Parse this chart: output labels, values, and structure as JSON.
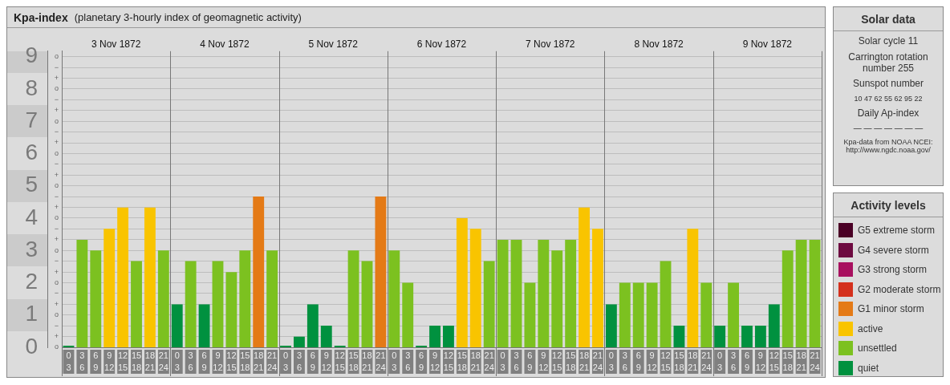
{
  "chart_data": [
    {
      "type": "bar",
      "title": "Kpa-index",
      "subtitle": "(planetary 3-hourly index of geomagnetic activity)",
      "legend_title": "Activity levels",
      "legend": "right",
      "stacked": true,
      "grid": "y",
      "categories": [
        "0\n3",
        "3\n6",
        "6\n9",
        "9\n12",
        "12\n15",
        "15\n18",
        "18\n21",
        "21\n24",
        "0\n3",
        "3\n6",
        "6\n9",
        "9\n12",
        "12\n15",
        "15\n18",
        "18\n21",
        "21\n24",
        "0\n3",
        "3\n6",
        "6\n9",
        "9\n12",
        "12\n15",
        "15\n18",
        "18\n21",
        "21\n24",
        "0\n3",
        "3\n6",
        "6\n9",
        "9\n12",
        "12\n15",
        "15\n18",
        "18\n21",
        "21\n24",
        "0\n3",
        "3\n6",
        "6\n9",
        "9\n12",
        "12\n15",
        "15\n18",
        "18\n21",
        "21\n24",
        "0\n3",
        "3\n6",
        "6\n9",
        "9\n12",
        "12\n15",
        "15\n18",
        "18\n21",
        "21\n24",
        "0\n3",
        "3\n6",
        "6\n9",
        "9\n12",
        "12\n15",
        "15\n18",
        "18\n21",
        "21\n24"
      ],
      "annotations": [
        "3 Nov 1872",
        "4 Nov 1872",
        "5 Nov 1872",
        "6 Nov 1872",
        "7 Nov 1872",
        "8 Nov 1872",
        "9 Nov 1872"
      ],
      "ylim": [
        0,
        9.17
      ],
      "yticks": [
        0,
        1,
        2,
        3,
        4,
        5,
        6,
        7,
        8,
        9
      ],
      "y2_categories": [
        "o",
        "−",
        "+",
        "o",
        "−",
        "+",
        "o",
        "−",
        "+",
        "o",
        "−",
        "+",
        "o",
        "−",
        "+",
        "o",
        "−",
        "+",
        "o",
        "−",
        "+",
        "o",
        "−",
        "+",
        "o",
        "−",
        "+",
        "o"
      ],
      "series": [
        {
          "name": "G5 extreme storm",
          "color": "#4a0025",
          "values": [
            null,
            null,
            null,
            null,
            null,
            null,
            null,
            null,
            null,
            null,
            null,
            null,
            null,
            null,
            null,
            null,
            null,
            null,
            null,
            null,
            null,
            null,
            null,
            null,
            null,
            null,
            null,
            null,
            null,
            null,
            null,
            null,
            null,
            null,
            null,
            null,
            null,
            null,
            null,
            null,
            null,
            null,
            null,
            null,
            null,
            null,
            null,
            null,
            null,
            null,
            null,
            null,
            null,
            null,
            null,
            null
          ]
        },
        {
          "name": "G4 severe storm",
          "color": "#6d0a40",
          "values": [
            null,
            null,
            null,
            null,
            null,
            null,
            null,
            null,
            null,
            null,
            null,
            null,
            null,
            null,
            null,
            null,
            null,
            null,
            null,
            null,
            null,
            null,
            null,
            null,
            null,
            null,
            null,
            null,
            null,
            null,
            null,
            null,
            null,
            null,
            null,
            null,
            null,
            null,
            null,
            null,
            null,
            null,
            null,
            null,
            null,
            null,
            null,
            null,
            null,
            null,
            null,
            null,
            null,
            null,
            null,
            null
          ]
        },
        {
          "name": "G3 strong storm",
          "color": "#a8105f",
          "values": [
            null,
            null,
            null,
            null,
            null,
            null,
            null,
            null,
            null,
            null,
            null,
            null,
            null,
            null,
            null,
            null,
            null,
            null,
            null,
            null,
            null,
            null,
            null,
            null,
            null,
            null,
            null,
            null,
            null,
            null,
            null,
            null,
            null,
            null,
            null,
            null,
            null,
            null,
            null,
            null,
            null,
            null,
            null,
            null,
            null,
            null,
            null,
            null,
            null,
            null,
            null,
            null,
            null,
            null,
            null,
            null
          ]
        },
        {
          "name": "G2 moderate storm",
          "color": "#d4301c",
          "values": [
            null,
            null,
            null,
            null,
            null,
            null,
            null,
            null,
            null,
            null,
            null,
            null,
            null,
            null,
            null,
            null,
            null,
            null,
            null,
            null,
            null,
            null,
            null,
            null,
            null,
            null,
            null,
            null,
            null,
            null,
            null,
            null,
            null,
            null,
            null,
            null,
            null,
            null,
            null,
            null,
            null,
            null,
            null,
            null,
            null,
            null,
            null,
            null,
            null,
            null,
            null,
            null,
            null,
            null,
            null,
            null
          ]
        },
        {
          "name": "G1 minor storm",
          "color": "#e47a16",
          "values": [
            null,
            null,
            null,
            null,
            null,
            null,
            null,
            null,
            null,
            null,
            null,
            null,
            null,
            null,
            4.67,
            null,
            null,
            null,
            null,
            null,
            null,
            null,
            null,
            4.67,
            null,
            null,
            null,
            null,
            null,
            null,
            null,
            null,
            null,
            null,
            null,
            null,
            null,
            null,
            null,
            null,
            null,
            null,
            null,
            null,
            null,
            null,
            null,
            null,
            null,
            null,
            null,
            null,
            null,
            null,
            null,
            null
          ]
        },
        {
          "name": "active",
          "color": "#f9c400",
          "values": [
            null,
            null,
            null,
            3.67,
            4.33,
            null,
            4.33,
            null,
            null,
            null,
            null,
            null,
            null,
            null,
            null,
            null,
            null,
            null,
            null,
            null,
            null,
            null,
            null,
            null,
            null,
            null,
            null,
            null,
            null,
            4,
            3.67,
            null,
            null,
            null,
            null,
            null,
            null,
            null,
            4.33,
            3.67,
            null,
            null,
            null,
            null,
            null,
            null,
            3.67,
            null,
            null,
            null,
            null,
            null,
            null,
            null,
            null,
            null
          ]
        },
        {
          "name": "unsettled",
          "color": "#7cc120",
          "values": [
            null,
            3.33,
            3,
            null,
            null,
            2.67,
            null,
            3,
            null,
            2.67,
            null,
            2.67,
            2.33,
            3,
            null,
            3,
            null,
            null,
            null,
            null,
            null,
            3,
            2.67,
            null,
            3,
            2,
            null,
            null,
            null,
            null,
            null,
            2.67,
            3.33,
            3.33,
            2,
            3.33,
            3,
            3.33,
            null,
            null,
            null,
            2,
            2,
            2,
            2.67,
            null,
            null,
            2,
            null,
            2,
            null,
            null,
            null,
            3,
            3.33,
            3.33
          ]
        },
        {
          "name": "quiet",
          "color": "#00913f",
          "values": [
            0,
            null,
            null,
            null,
            null,
            null,
            null,
            null,
            1.33,
            null,
            1.33,
            null,
            null,
            null,
            null,
            null,
            0,
            0.33,
            1.33,
            0.67,
            0,
            null,
            null,
            null,
            null,
            null,
            0,
            0.67,
            0.67,
            null,
            null,
            null,
            null,
            null,
            null,
            null,
            null,
            null,
            null,
            null,
            1.33,
            null,
            null,
            null,
            null,
            0.67,
            null,
            null,
            0.67,
            null,
            0.67,
            0.67,
            1.33,
            null,
            null,
            null
          ]
        }
      ]
    },
    {
      "type": "other",
      "title": "Solar data",
      "annotations": [
        "Solar cycle 11",
        "Carrington rotation number 255",
        "Sunspot number",
        "10   47   62   55   62   95   22",
        "Daily Ap-index",
        "—   —   —   —   —   —   —",
        "Kpa-data from NOAA NCEI: http://www.ngdc.noaa.gov/"
      ]
    }
  ]
}
